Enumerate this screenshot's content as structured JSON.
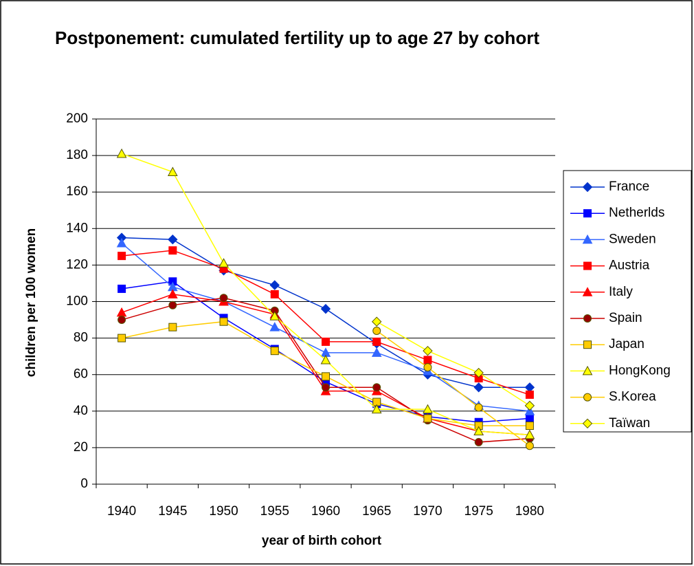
{
  "chart_data": {
    "type": "line",
    "title": "Postponement: cumulated fertility up to age 27 by cohort",
    "x_label": "year of birth cohort",
    "y_label": "children per 100 women",
    "categories": [
      "1940",
      "1945",
      "1950",
      "1955",
      "1960",
      "1965",
      "1970",
      "1975",
      "1980"
    ],
    "ylim": [
      0,
      200
    ],
    "yticks": [
      0,
      20,
      40,
      60,
      80,
      100,
      120,
      140,
      160,
      180,
      200
    ],
    "grid": true,
    "legend": "right",
    "series": [
      {
        "name": "France",
        "color": "#0033cc",
        "marker": "diamond",
        "marker_fill": "#0033cc",
        "values": [
          135,
          134,
          117,
          109,
          96,
          77,
          60,
          53,
          53
        ]
      },
      {
        "name": "Netherlds",
        "color": "#0000ff",
        "marker": "square",
        "marker_fill": "#0000ff",
        "values": [
          107,
          111,
          91,
          74,
          56,
          44,
          37,
          34,
          36
        ]
      },
      {
        "name": "Sweden",
        "color": "#3366ff",
        "marker": "triangle",
        "marker_fill": "#3366ff",
        "values": [
          132,
          108,
          100,
          86,
          72,
          72,
          62,
          43,
          40
        ]
      },
      {
        "name": "Austria",
        "color": "#ff0000",
        "marker": "square",
        "marker_fill": "#ff0000",
        "values": [
          125,
          128,
          118,
          104,
          78,
          78,
          68,
          58,
          49
        ]
      },
      {
        "name": "Italy",
        "color": "#ff0000",
        "marker": "triangle",
        "marker_fill": "#ff0000",
        "values": [
          94,
          104,
          100,
          93,
          51,
          51,
          36,
          29,
          27
        ]
      },
      {
        "name": "Spain",
        "color": "#cc0000",
        "marker": "circle",
        "marker_fill": "#990000",
        "values": [
          90,
          98,
          102,
          95,
          53,
          53,
          35,
          23,
          25
        ]
      },
      {
        "name": "Japan",
        "color": "#ffcc00",
        "marker": "square",
        "marker_fill": "#ffcc00",
        "values": [
          80,
          86,
          89,
          73,
          59,
          45,
          36,
          32,
          32
        ]
      },
      {
        "name": "HongKong",
        "color": "#ffff00",
        "marker": "triangle",
        "marker_fill": "#ffff00",
        "values": [
          181,
          171,
          121,
          92,
          68,
          41,
          41,
          29,
          27
        ]
      },
      {
        "name": "S.Korea",
        "color": "#ffcc00",
        "marker": "circle",
        "marker_fill": "#ffcc00",
        "values": [
          null,
          null,
          null,
          null,
          null,
          84,
          64,
          42,
          21
        ]
      },
      {
        "name": "Taïwan",
        "color": "#ffff00",
        "marker": "diamond",
        "marker_fill": "#ffff00",
        "values": [
          null,
          null,
          null,
          null,
          null,
          89,
          73,
          61,
          43
        ]
      }
    ]
  }
}
